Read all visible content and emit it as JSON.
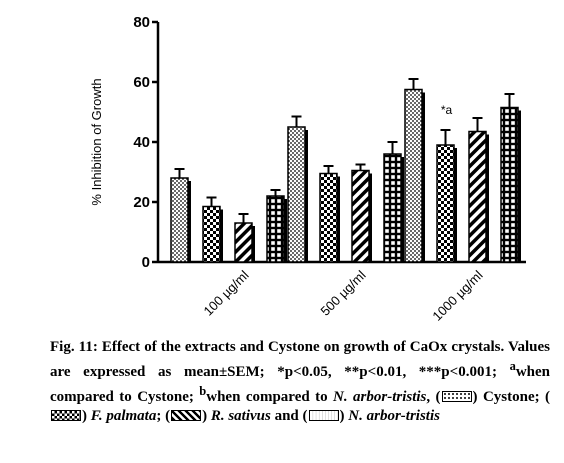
{
  "chart_data": {
    "type": "bar",
    "ylabel": "% Inhibition of Growth",
    "xlabel": "",
    "ylim": [
      0,
      80
    ],
    "yticks": [
      0,
      20,
      40,
      60,
      80
    ],
    "categories": [
      "100 µg/ml",
      "500 µg/ml",
      "1000 µg/ml"
    ],
    "series": [
      {
        "name": "Cystone",
        "pattern": "dots",
        "values": [
          28,
          45,
          57.5
        ],
        "errors": [
          3,
          3.5,
          3.5
        ]
      },
      {
        "name": "F. palmata",
        "pattern": "checker",
        "values": [
          18.5,
          29.5,
          39
        ],
        "errors": [
          3,
          2.5,
          5
        ]
      },
      {
        "name": "R. sativus",
        "pattern": "stripes",
        "values": [
          13,
          30.5,
          43.5
        ],
        "errors": [
          3,
          2,
          4.5
        ]
      },
      {
        "name": "N. arbor-tristis",
        "pattern": "squares",
        "values": [
          22,
          36,
          51.5
        ],
        "errors": [
          2,
          4,
          4.5
        ]
      }
    ],
    "annotations": [
      {
        "category": "1000 µg/ml",
        "series": "F. palmata",
        "text": "*a"
      }
    ]
  },
  "caption": {
    "fig_label": "Fig. 11:",
    "title": "Effect of the extracts and Cystone on growth of CaOx crystals.",
    "sentence_values": "Values are expressed as mean±SEM;",
    "significance": "*p<0.05, **p<0.01, ***p<0.001;",
    "note_a_mark": "a",
    "note_a_text": "when compared to Cystone;",
    "note_b_mark": "b",
    "note_b_text_pre": "when compared to",
    "note_b_species": "N. arbor-tristis",
    "legend_cystone": "Cystone",
    "legend_fpalmata": "F. palmata",
    "legend_rsativus": "R. sativus",
    "legend_and": "and",
    "legend_narbor": "N. arbor-tristis"
  }
}
